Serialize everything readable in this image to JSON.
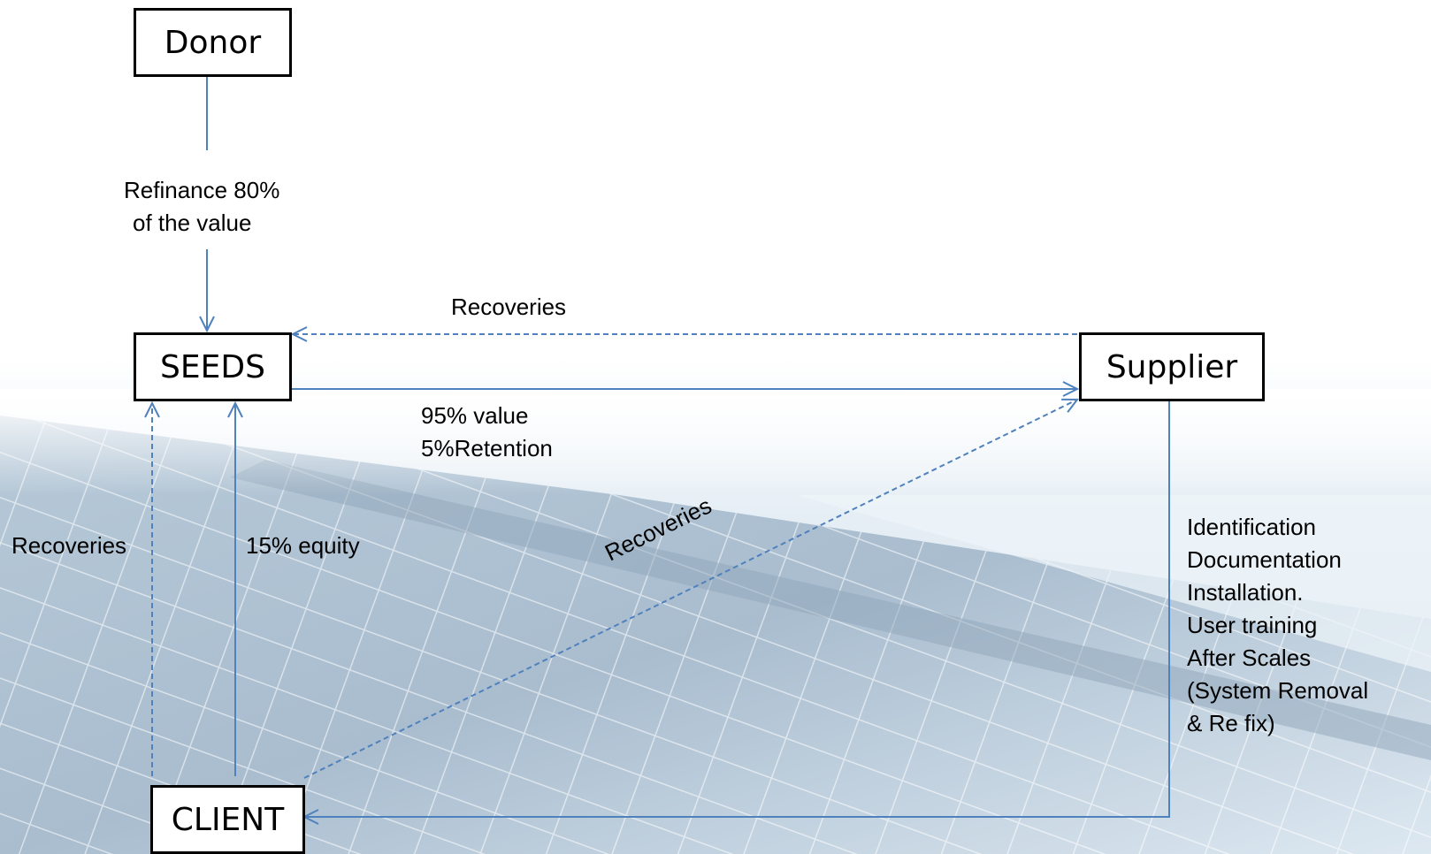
{
  "nodes": {
    "donor": "Donor",
    "seeds": "SEEDS",
    "supplier": "Supplier",
    "client": "CLIENT"
  },
  "labels": {
    "refinance": [
      "Refinance 80%",
      "of the value"
    ],
    "recoveries_supplier_to_seeds": "Recoveries",
    "seeds_to_supplier": [
      "95% value",
      "5%Retention"
    ],
    "recoveries_client_to_seeds": "Recoveries",
    "equity": "15% equity",
    "recoveries_client_to_supplier": "Recoveries",
    "supplier_services": [
      "Identification",
      "Documentation",
      "Installation.",
      "User training",
      "After Scales",
      "(System Removal",
      "& Re fix)"
    ]
  },
  "colors": {
    "arrow": "#4f81bd",
    "box_border": "#000000"
  }
}
